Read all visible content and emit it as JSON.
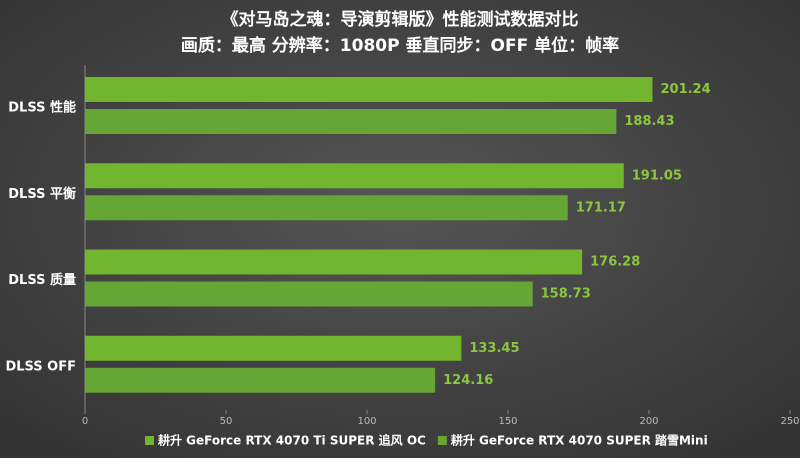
{
  "chart_data": {
    "type": "hbar",
    "title": "《对马岛之魂：导演剪辑版》性能测试数据对比",
    "subtitle": "画质：最高 分辨率：1080P 垂直同步：OFF 单位：帧率",
    "categories": [
      "DLSS 性能",
      "DLSS 平衡",
      "DLSS 质量",
      "DLSS OFF"
    ],
    "series": [
      {
        "name": "耕升 GeForce RTX 4070 Ti SUPER 追风 OC",
        "color": "#72b52e",
        "values": [
          201.24,
          191.05,
          176.28,
          133.45
        ]
      },
      {
        "name": "耕升 GeForce RTX 4070 SUPER 踏雪Mini",
        "color": "#66a634",
        "values": [
          188.43,
          171.17,
          158.73,
          124.16
        ]
      }
    ],
    "xlim": [
      0,
      250
    ],
    "xticks": [
      0,
      50,
      100,
      150,
      200,
      250
    ],
    "legend": "bottom"
  }
}
